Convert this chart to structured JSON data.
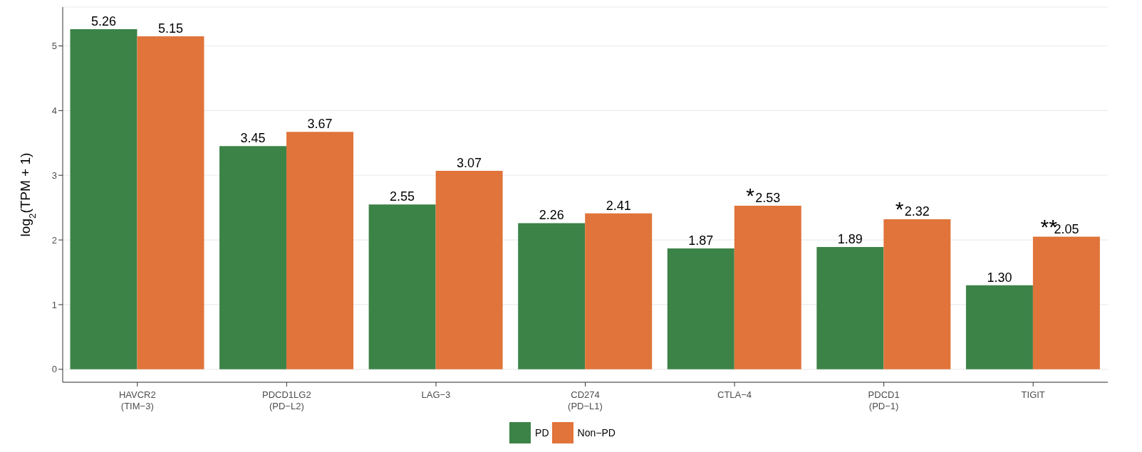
{
  "chart_data": {
    "type": "bar",
    "ylabel": "log$_{2}$(TPM + 1)",
    "categories": [
      "HAVCR2\n(TIM−3)",
      "PDCD1LG2\n(PD−L2)",
      "LAG−3",
      "CD274\n(PD−L1)",
      "CTLA−4",
      "PDCD1\n(PD−1)",
      "TIGIT"
    ],
    "series": [
      {
        "name": "PD",
        "color": "#3c8348",
        "values": [
          5.26,
          3.45,
          2.55,
          2.26,
          1.87,
          1.89,
          1.3
        ],
        "value_labels": [
          "5.26",
          "3.45",
          "2.55",
          "2.26",
          "1.87",
          "1.89",
          "1.30"
        ]
      },
      {
        "name": "Non−PD",
        "color": "#e0743a",
        "values": [
          5.15,
          3.67,
          3.07,
          2.41,
          2.53,
          2.32,
          2.05
        ],
        "value_labels": [
          "5.15",
          "3.67",
          "3.07",
          "2.41",
          "2.53",
          "2.32",
          "2.05"
        ]
      }
    ],
    "ylim": [
      -0.2,
      5.6
    ],
    "yticks": [
      0,
      1,
      2,
      3,
      4,
      5
    ],
    "grid": "y",
    "legend": "bottom",
    "annotations": [
      {
        "text": "*",
        "x": "CTLA−4",
        "y": 2.53
      },
      {
        "text": "*",
        "x": "PDCD1\n(PD−1)",
        "y": 2.32
      },
      {
        "text": "**",
        "x": "TIGIT",
        "y": 2.05
      }
    ]
  }
}
